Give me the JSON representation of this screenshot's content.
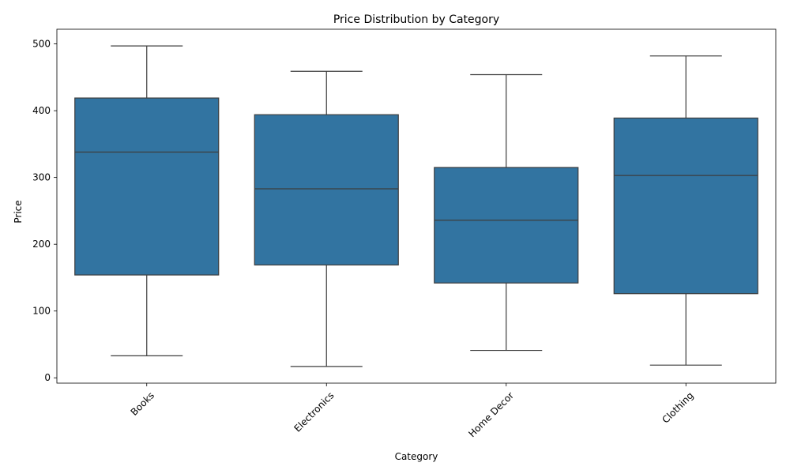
{
  "chart_data": {
    "type": "box",
    "title": "Price Distribution by Category",
    "xlabel": "Category",
    "ylabel": "Price",
    "categories": [
      "Books",
      "Electronics",
      "Home Decor",
      "Clothing"
    ],
    "boxes": [
      {
        "category": "Books",
        "min": 33,
        "q1": 154,
        "median": 338,
        "q3": 419,
        "max": 497
      },
      {
        "category": "Electronics",
        "min": 17,
        "q1": 169,
        "median": 283,
        "q3": 394,
        "max": 459
      },
      {
        "category": "Home Decor",
        "min": 41,
        "q1": 142,
        "median": 236,
        "q3": 315,
        "max": 454
      },
      {
        "category": "Clothing",
        "min": 19,
        "q1": 126,
        "median": 303,
        "q3": 389,
        "max": 482
      }
    ],
    "yticks": [
      0,
      100,
      200,
      300,
      400,
      500
    ],
    "ylim": [
      -8,
      522
    ],
    "grid": false,
    "box_color": "#3274a1",
    "line_color": "#3d3d3d"
  }
}
